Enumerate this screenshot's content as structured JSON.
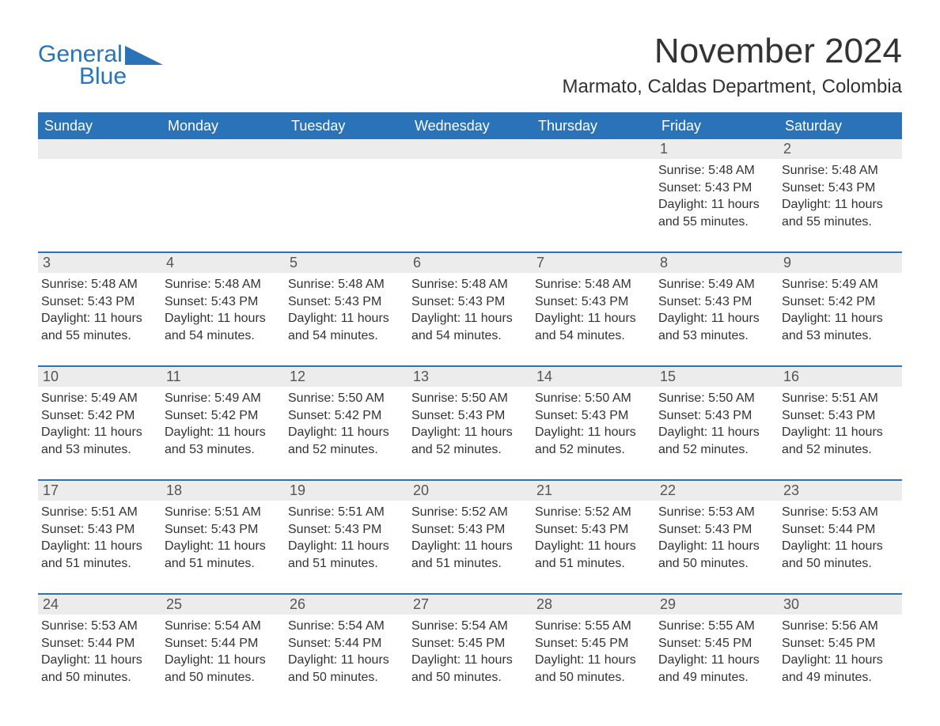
{
  "brand": {
    "line1": "General",
    "line2": "Blue",
    "accent_color": "#2a73b8"
  },
  "title": "November 2024",
  "location": "Marmato, Caldas Department, Colombia",
  "colors": {
    "header_bg": "#2a73b8",
    "header_text": "#ffffff",
    "daynum_bg": "#ececec",
    "daynum_text": "#555555",
    "body_text": "#333333",
    "row_divider": "#2a73b8",
    "page_bg": "#ffffff"
  },
  "weekdays": [
    "Sunday",
    "Monday",
    "Tuesday",
    "Wednesday",
    "Thursday",
    "Friday",
    "Saturday"
  ],
  "weeks": [
    [
      {
        "empty": true
      },
      {
        "empty": true
      },
      {
        "empty": true
      },
      {
        "empty": true
      },
      {
        "empty": true
      },
      {
        "day": "1",
        "sunrise": "Sunrise: 5:48 AM",
        "sunset": "Sunset: 5:43 PM",
        "daylight": "Daylight: 11 hours and 55 minutes."
      },
      {
        "day": "2",
        "sunrise": "Sunrise: 5:48 AM",
        "sunset": "Sunset: 5:43 PM",
        "daylight": "Daylight: 11 hours and 55 minutes."
      }
    ],
    [
      {
        "day": "3",
        "sunrise": "Sunrise: 5:48 AM",
        "sunset": "Sunset: 5:43 PM",
        "daylight": "Daylight: 11 hours and 55 minutes."
      },
      {
        "day": "4",
        "sunrise": "Sunrise: 5:48 AM",
        "sunset": "Sunset: 5:43 PM",
        "daylight": "Daylight: 11 hours and 54 minutes."
      },
      {
        "day": "5",
        "sunrise": "Sunrise: 5:48 AM",
        "sunset": "Sunset: 5:43 PM",
        "daylight": "Daylight: 11 hours and 54 minutes."
      },
      {
        "day": "6",
        "sunrise": "Sunrise: 5:48 AM",
        "sunset": "Sunset: 5:43 PM",
        "daylight": "Daylight: 11 hours and 54 minutes."
      },
      {
        "day": "7",
        "sunrise": "Sunrise: 5:48 AM",
        "sunset": "Sunset: 5:43 PM",
        "daylight": "Daylight: 11 hours and 54 minutes."
      },
      {
        "day": "8",
        "sunrise": "Sunrise: 5:49 AM",
        "sunset": "Sunset: 5:43 PM",
        "daylight": "Daylight: 11 hours and 53 minutes."
      },
      {
        "day": "9",
        "sunrise": "Sunrise: 5:49 AM",
        "sunset": "Sunset: 5:42 PM",
        "daylight": "Daylight: 11 hours and 53 minutes."
      }
    ],
    [
      {
        "day": "10",
        "sunrise": "Sunrise: 5:49 AM",
        "sunset": "Sunset: 5:42 PM",
        "daylight": "Daylight: 11 hours and 53 minutes."
      },
      {
        "day": "11",
        "sunrise": "Sunrise: 5:49 AM",
        "sunset": "Sunset: 5:42 PM",
        "daylight": "Daylight: 11 hours and 53 minutes."
      },
      {
        "day": "12",
        "sunrise": "Sunrise: 5:50 AM",
        "sunset": "Sunset: 5:42 PM",
        "daylight": "Daylight: 11 hours and 52 minutes."
      },
      {
        "day": "13",
        "sunrise": "Sunrise: 5:50 AM",
        "sunset": "Sunset: 5:43 PM",
        "daylight": "Daylight: 11 hours and 52 minutes."
      },
      {
        "day": "14",
        "sunrise": "Sunrise: 5:50 AM",
        "sunset": "Sunset: 5:43 PM",
        "daylight": "Daylight: 11 hours and 52 minutes."
      },
      {
        "day": "15",
        "sunrise": "Sunrise: 5:50 AM",
        "sunset": "Sunset: 5:43 PM",
        "daylight": "Daylight: 11 hours and 52 minutes."
      },
      {
        "day": "16",
        "sunrise": "Sunrise: 5:51 AM",
        "sunset": "Sunset: 5:43 PM",
        "daylight": "Daylight: 11 hours and 52 minutes."
      }
    ],
    [
      {
        "day": "17",
        "sunrise": "Sunrise: 5:51 AM",
        "sunset": "Sunset: 5:43 PM",
        "daylight": "Daylight: 11 hours and 51 minutes."
      },
      {
        "day": "18",
        "sunrise": "Sunrise: 5:51 AM",
        "sunset": "Sunset: 5:43 PM",
        "daylight": "Daylight: 11 hours and 51 minutes."
      },
      {
        "day": "19",
        "sunrise": "Sunrise: 5:51 AM",
        "sunset": "Sunset: 5:43 PM",
        "daylight": "Daylight: 11 hours and 51 minutes."
      },
      {
        "day": "20",
        "sunrise": "Sunrise: 5:52 AM",
        "sunset": "Sunset: 5:43 PM",
        "daylight": "Daylight: 11 hours and 51 minutes."
      },
      {
        "day": "21",
        "sunrise": "Sunrise: 5:52 AM",
        "sunset": "Sunset: 5:43 PM",
        "daylight": "Daylight: 11 hours and 51 minutes."
      },
      {
        "day": "22",
        "sunrise": "Sunrise: 5:53 AM",
        "sunset": "Sunset: 5:43 PM",
        "daylight": "Daylight: 11 hours and 50 minutes."
      },
      {
        "day": "23",
        "sunrise": "Sunrise: 5:53 AM",
        "sunset": "Sunset: 5:44 PM",
        "daylight": "Daylight: 11 hours and 50 minutes."
      }
    ],
    [
      {
        "day": "24",
        "sunrise": "Sunrise: 5:53 AM",
        "sunset": "Sunset: 5:44 PM",
        "daylight": "Daylight: 11 hours and 50 minutes."
      },
      {
        "day": "25",
        "sunrise": "Sunrise: 5:54 AM",
        "sunset": "Sunset: 5:44 PM",
        "daylight": "Daylight: 11 hours and 50 minutes."
      },
      {
        "day": "26",
        "sunrise": "Sunrise: 5:54 AM",
        "sunset": "Sunset: 5:44 PM",
        "daylight": "Daylight: 11 hours and 50 minutes."
      },
      {
        "day": "27",
        "sunrise": "Sunrise: 5:54 AM",
        "sunset": "Sunset: 5:45 PM",
        "daylight": "Daylight: 11 hours and 50 minutes."
      },
      {
        "day": "28",
        "sunrise": "Sunrise: 5:55 AM",
        "sunset": "Sunset: 5:45 PM",
        "daylight": "Daylight: 11 hours and 50 minutes."
      },
      {
        "day": "29",
        "sunrise": "Sunrise: 5:55 AM",
        "sunset": "Sunset: 5:45 PM",
        "daylight": "Daylight: 11 hours and 49 minutes."
      },
      {
        "day": "30",
        "sunrise": "Sunrise: 5:56 AM",
        "sunset": "Sunset: 5:45 PM",
        "daylight": "Daylight: 11 hours and 49 minutes."
      }
    ]
  ]
}
